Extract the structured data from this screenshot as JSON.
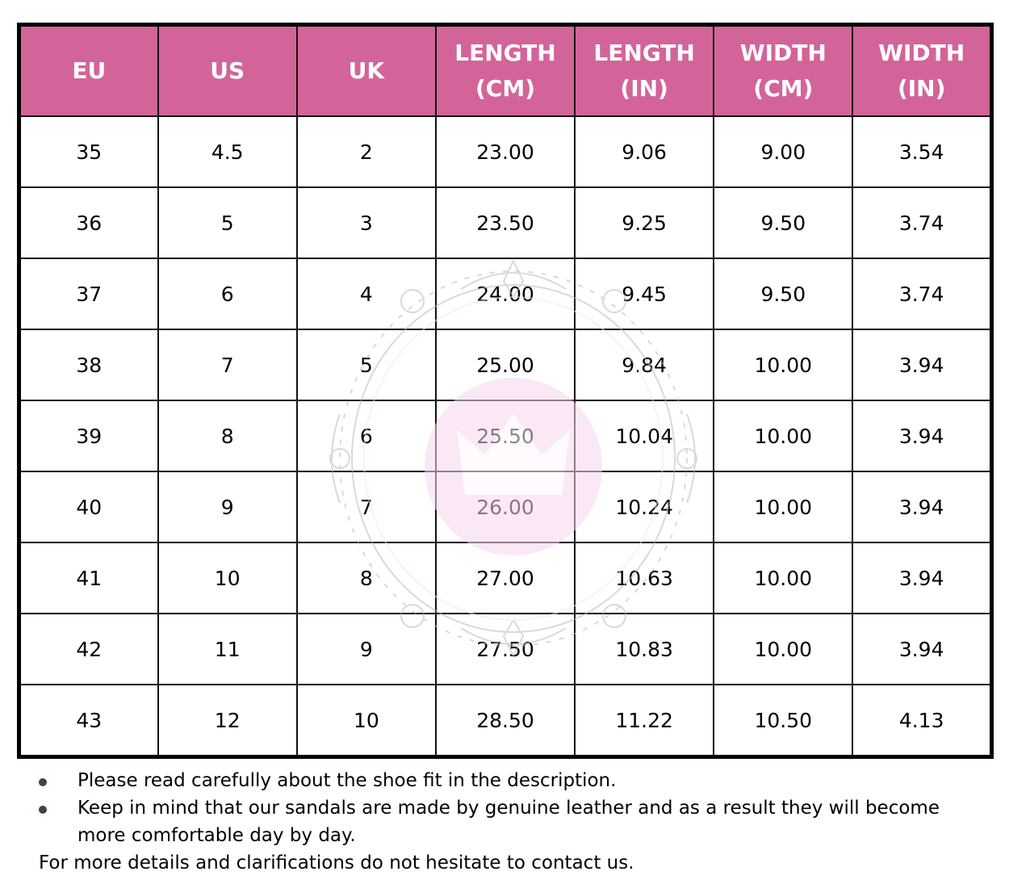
{
  "table": {
    "headers": [
      [
        "EU"
      ],
      [
        "US"
      ],
      [
        "UK"
      ],
      [
        "LENGTH",
        "(CM)"
      ],
      [
        "LENGTH",
        "(IN)"
      ],
      [
        "WIDTH",
        "(CM)"
      ],
      [
        "WIDTH",
        "(IN)"
      ]
    ],
    "rows": [
      [
        "35",
        "4.5",
        "2",
        "23.00",
        "9.06",
        "9.00",
        "3.54"
      ],
      [
        "36",
        "5",
        "3",
        "23.50",
        "9.25",
        "9.50",
        "3.74"
      ],
      [
        "37",
        "6",
        "4",
        "24.00",
        "9.45",
        "9.50",
        "3.74"
      ],
      [
        "38",
        "7",
        "5",
        "25.00",
        "9.84",
        "10.00",
        "3.94"
      ],
      [
        "39",
        "8",
        "6",
        "25.50",
        "10.04",
        "10.00",
        "3.94"
      ],
      [
        "40",
        "9",
        "7",
        "26.00",
        "10.24",
        "10.00",
        "3.94"
      ],
      [
        "41",
        "10",
        "8",
        "27.00",
        "10.63",
        "10.00",
        "3.94"
      ],
      [
        "42",
        "11",
        "9",
        "27.50",
        "10.83",
        "10.00",
        "3.94"
      ],
      [
        "43",
        "12",
        "10",
        "28.50",
        "11.22",
        "10.50",
        "4.13"
      ]
    ]
  },
  "notes": {
    "bullets": [
      "Please read carefully about the shoe fit in the description.",
      "Keep in mind that our sandals are made by genuine leather and as a result they will become more comfortable day by day."
    ],
    "footer": "For more details and clarifications do not hesitate to contact us."
  },
  "colors": {
    "header_bg": "#d3649a",
    "header_text": "#ffffff",
    "watermark": "#f9d6f0"
  }
}
